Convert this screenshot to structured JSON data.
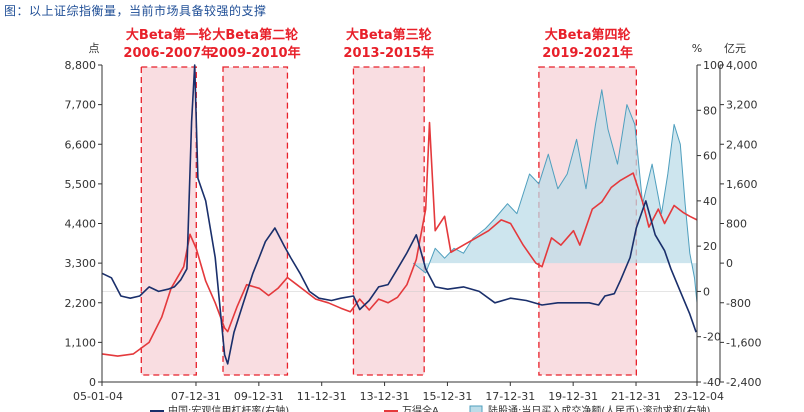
{
  "caption": "图：以上证综指衡量，当前市场具备较强的支撑",
  "axes": {
    "left_unit": "点",
    "right1_unit": "%",
    "right2_unit": "亿元"
  },
  "chart_data": {
    "type": "line",
    "x_ticks": [
      "05-01-04",
      "07-12-31",
      "09-12-31",
      "11-12-31",
      "13-12-31",
      "15-12-31",
      "17-12-31",
      "19-12-31",
      "21-12-31",
      "23-12-04"
    ],
    "x_range": [
      "2005-01-04",
      "2023-12-04"
    ],
    "y_left": {
      "ticks": [
        0,
        1100,
        2200,
        3300,
        4400,
        5500,
        6600,
        7700,
        8800
      ],
      "tick_labels": [
        "0",
        "1,100",
        "2,200",
        "3,300",
        "4,400",
        "5,500",
        "6,600",
        "7,700",
        "8,800"
      ],
      "ylim": [
        0,
        8800
      ]
    },
    "y_right1": {
      "ticks": [
        -40,
        -20,
        0,
        20,
        40,
        60,
        80,
        100
      ],
      "ylim": [
        -40,
        100
      ]
    },
    "y_right2": {
      "ticks": [
        -2400,
        -1600,
        -800,
        0,
        800,
        1600,
        2400,
        3200,
        4000
      ],
      "tick_labels": [
        "-2,400",
        "-1,600",
        "-800",
        "0",
        "800",
        "1,600",
        "2,400",
        "3,200",
        "4,000"
      ],
      "ylim": [
        -2400,
        4000
      ]
    },
    "periods": [
      {
        "title": "大Beta第一轮",
        "years": "2006-2007年",
        "start": 2006.25,
        "end": 2008.0
      },
      {
        "title": "大Beta第二轮",
        "years": "2009-2010年",
        "start": 2008.85,
        "end": 2010.9
      },
      {
        "title": "大Beta第三轮",
        "years": "2013-2015年",
        "start": 2013.0,
        "end": 2015.25
      },
      {
        "title": "大Beta第四轮",
        "years": "2019-2021年",
        "start": 2018.9,
        "end": 2022.0
      }
    ],
    "series": [
      {
        "name": "中国:宏观信用杠杆率(右轴)",
        "color": "#1a2f6b",
        "axis": "right1",
        "points": [
          [
            2005.0,
            8
          ],
          [
            2005.3,
            6
          ],
          [
            2005.6,
            -2
          ],
          [
            2005.9,
            -3
          ],
          [
            2006.2,
            -2
          ],
          [
            2006.5,
            2
          ],
          [
            2006.8,
            0
          ],
          [
            2007.1,
            1
          ],
          [
            2007.3,
            2
          ],
          [
            2007.5,
            5
          ],
          [
            2007.7,
            10
          ],
          [
            2007.85,
            75
          ],
          [
            2007.95,
            100
          ],
          [
            2008.05,
            50
          ],
          [
            2008.3,
            40
          ],
          [
            2008.6,
            15
          ],
          [
            2008.9,
            -28
          ],
          [
            2009.0,
            -32
          ],
          [
            2009.2,
            -18
          ],
          [
            2009.5,
            -5
          ],
          [
            2009.8,
            8
          ],
          [
            2010.0,
            15
          ],
          [
            2010.2,
            22
          ],
          [
            2010.5,
            28
          ],
          [
            2010.8,
            20
          ],
          [
            2011.0,
            15
          ],
          [
            2011.3,
            8
          ],
          [
            2011.6,
            0
          ],
          [
            2011.9,
            -3
          ],
          [
            2012.3,
            -4
          ],
          [
            2012.6,
            -3
          ],
          [
            2013.0,
            -2
          ],
          [
            2013.2,
            -8
          ],
          [
            2013.5,
            -4
          ],
          [
            2013.8,
            2
          ],
          [
            2014.1,
            3
          ],
          [
            2014.4,
            10
          ],
          [
            2014.7,
            17
          ],
          [
            2015.0,
            25
          ],
          [
            2015.3,
            10
          ],
          [
            2015.6,
            2
          ],
          [
            2016.0,
            1
          ],
          [
            2016.5,
            2
          ],
          [
            2017.0,
            0
          ],
          [
            2017.5,
            -5
          ],
          [
            2018.0,
            -3
          ],
          [
            2018.5,
            -4
          ],
          [
            2019.0,
            -6
          ],
          [
            2019.5,
            -5
          ],
          [
            2020.0,
            -5
          ],
          [
            2020.5,
            -5
          ],
          [
            2020.8,
            -6
          ],
          [
            2021.0,
            -2
          ],
          [
            2021.3,
            -1
          ],
          [
            2021.5,
            5
          ],
          [
            2021.8,
            15
          ],
          [
            2022.0,
            28
          ],
          [
            2022.3,
            40
          ],
          [
            2022.6,
            25
          ],
          [
            2022.9,
            18
          ],
          [
            2023.1,
            10
          ],
          [
            2023.4,
            0
          ],
          [
            2023.7,
            -10
          ],
          [
            2023.9,
            -18
          ]
        ]
      },
      {
        "name": "万得全A",
        "color": "#e4393c",
        "axis": "left",
        "points": [
          [
            2005.0,
            780
          ],
          [
            2005.5,
            720
          ],
          [
            2006.0,
            780
          ],
          [
            2006.5,
            1100
          ],
          [
            2006.9,
            1800
          ],
          [
            2007.2,
            2600
          ],
          [
            2007.6,
            3200
          ],
          [
            2007.8,
            4100
          ],
          [
            2008.0,
            3700
          ],
          [
            2008.3,
            2800
          ],
          [
            2008.6,
            2200
          ],
          [
            2008.9,
            1500
          ],
          [
            2009.0,
            1400
          ],
          [
            2009.3,
            2100
          ],
          [
            2009.6,
            2700
          ],
          [
            2010.0,
            2600
          ],
          [
            2010.3,
            2400
          ],
          [
            2010.6,
            2600
          ],
          [
            2010.9,
            2900
          ],
          [
            2011.2,
            2700
          ],
          [
            2011.5,
            2500
          ],
          [
            2011.8,
            2300
          ],
          [
            2012.2,
            2200
          ],
          [
            2012.6,
            2050
          ],
          [
            2012.9,
            1950
          ],
          [
            2013.2,
            2300
          ],
          [
            2013.5,
            2000
          ],
          [
            2013.8,
            2300
          ],
          [
            2014.1,
            2200
          ],
          [
            2014.4,
            2350
          ],
          [
            2014.7,
            2700
          ],
          [
            2015.0,
            3400
          ],
          [
            2015.3,
            4800
          ],
          [
            2015.42,
            7200
          ],
          [
            2015.6,
            4200
          ],
          [
            2015.9,
            4600
          ],
          [
            2016.1,
            3600
          ],
          [
            2016.5,
            3800
          ],
          [
            2016.9,
            4000
          ],
          [
            2017.3,
            4200
          ],
          [
            2017.7,
            4500
          ],
          [
            2018.0,
            4400
          ],
          [
            2018.4,
            3800
          ],
          [
            2018.8,
            3300
          ],
          [
            2019.0,
            3200
          ],
          [
            2019.3,
            4000
          ],
          [
            2019.6,
            3800
          ],
          [
            2020.0,
            4200
          ],
          [
            2020.2,
            3800
          ],
          [
            2020.6,
            4800
          ],
          [
            2020.9,
            5000
          ],
          [
            2021.2,
            5400
          ],
          [
            2021.5,
            5600
          ],
          [
            2021.9,
            5800
          ],
          [
            2022.2,
            5000
          ],
          [
            2022.4,
            4300
          ],
          [
            2022.7,
            4800
          ],
          [
            2022.9,
            4400
          ],
          [
            2023.2,
            4900
          ],
          [
            2023.5,
            4700
          ],
          [
            2023.7,
            4600
          ],
          [
            2023.93,
            4500
          ]
        ]
      },
      {
        "name": "陆股通:当日买入成交净额(人民币):滚动求和(右轴)",
        "color": "#4f9fbe",
        "fill": "#bcdce8",
        "axis": "right2",
        "points": [
          [
            2014.9,
            0
          ],
          [
            2015.3,
            -200
          ],
          [
            2015.6,
            300
          ],
          [
            2015.9,
            100
          ],
          [
            2016.2,
            300
          ],
          [
            2016.5,
            200
          ],
          [
            2016.8,
            500
          ],
          [
            2017.2,
            700
          ],
          [
            2017.5,
            900
          ],
          [
            2017.9,
            1200
          ],
          [
            2018.2,
            1000
          ],
          [
            2018.6,
            1800
          ],
          [
            2018.9,
            1600
          ],
          [
            2019.2,
            2200
          ],
          [
            2019.5,
            1500
          ],
          [
            2019.8,
            1800
          ],
          [
            2020.1,
            2500
          ],
          [
            2020.4,
            1500
          ],
          [
            2020.7,
            2800
          ],
          [
            2020.9,
            3500
          ],
          [
            2021.1,
            2700
          ],
          [
            2021.4,
            2000
          ],
          [
            2021.7,
            3200
          ],
          [
            2021.95,
            2800
          ],
          [
            2022.2,
            1200
          ],
          [
            2022.5,
            2000
          ],
          [
            2022.8,
            1000
          ],
          [
            2023.0,
            1800
          ],
          [
            2023.2,
            2800
          ],
          [
            2023.4,
            2400
          ],
          [
            2023.55,
            1200
          ],
          [
            2023.7,
            200
          ],
          [
            2023.85,
            -300
          ],
          [
            2023.93,
            -800
          ]
        ]
      }
    ]
  }
}
